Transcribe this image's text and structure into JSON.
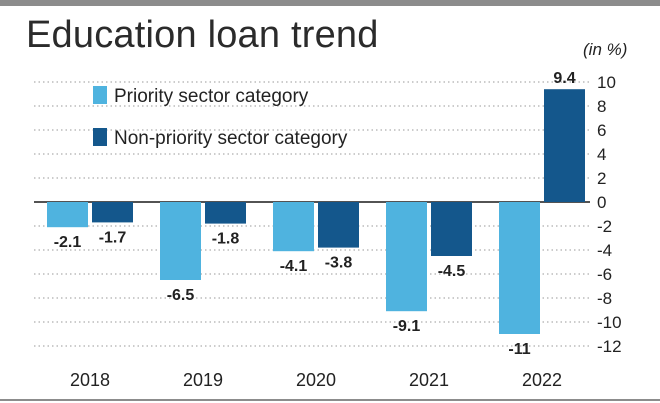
{
  "title": "Education loan trend",
  "unit_label": "(in %)",
  "colors": {
    "priority": "#4fb3df",
    "non_priority": "#14578c",
    "grid": "#9a9a9a",
    "text": "#222222"
  },
  "chart_data": {
    "type": "bar",
    "title": "Education loan trend",
    "unit": "(in %)",
    "categories": [
      "2018",
      "2019",
      "2020",
      "2021",
      "2022"
    ],
    "series": [
      {
        "name": "Priority sector category",
        "values": [
          -2.1,
          -6.5,
          -4.1,
          -9.1,
          -11
        ],
        "labels": [
          "-2.1",
          "-6.5",
          "-4.1",
          "-9.1",
          "-11"
        ]
      },
      {
        "name": "Non-priority sector category",
        "values": [
          -1.7,
          -1.8,
          -3.8,
          -4.5,
          9.4
        ],
        "labels": [
          "-1.7",
          "-1.8",
          "-3.8",
          "-4.5",
          "9.4"
        ]
      }
    ],
    "ylim": [
      -12,
      10
    ],
    "yticks": [
      10,
      8,
      6,
      4,
      2,
      0,
      -2,
      -4,
      -6,
      -8,
      -10,
      -12
    ],
    "grid": true,
    "grid_style": "dotted",
    "legend_position": "top-left",
    "axis_side": "right"
  }
}
